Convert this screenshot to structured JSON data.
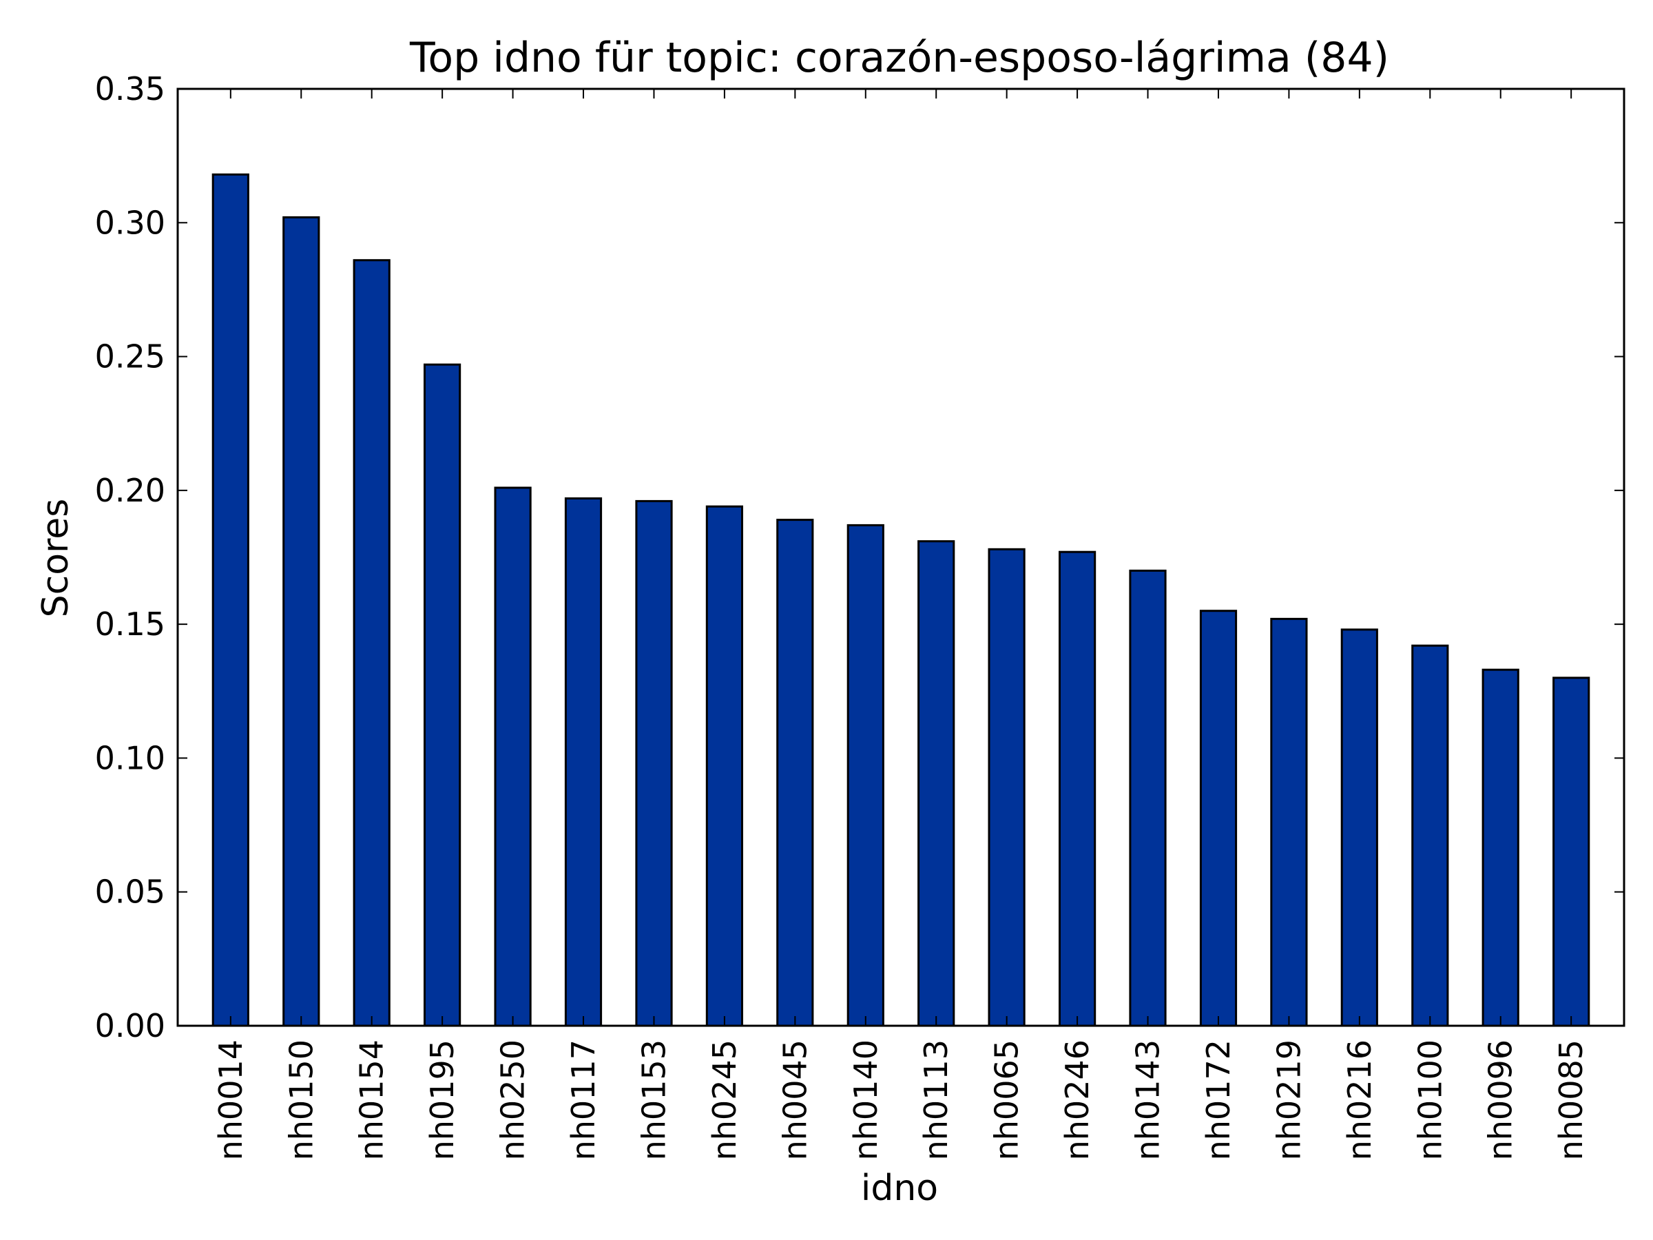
{
  "chart_data": {
    "type": "bar",
    "title": "Top idno für topic: corazón-esposo-lágrima (84)",
    "xlabel": "idno",
    "ylabel": "Scores",
    "ylim": [
      0,
      0.35
    ],
    "yticks": [
      "0.00",
      "0.05",
      "0.10",
      "0.15",
      "0.20",
      "0.25",
      "0.30",
      "0.35"
    ],
    "ytick_values": [
      0,
      0.05,
      0.1,
      0.15,
      0.2,
      0.25,
      0.3,
      0.35
    ],
    "grid": false,
    "bar_color": "#003399",
    "categories": [
      "nh0014",
      "nh0150",
      "nh0154",
      "nh0195",
      "nh0250",
      "nh0117",
      "nh0153",
      "nh0245",
      "nh0045",
      "nh0140",
      "nh0113",
      "nh0065",
      "nh0246",
      "nh0143",
      "nh0172",
      "nh0219",
      "nh0216",
      "nh0100",
      "nh0096",
      "nh0085"
    ],
    "values": [
      0.318,
      0.302,
      0.286,
      0.247,
      0.201,
      0.197,
      0.196,
      0.194,
      0.189,
      0.187,
      0.181,
      0.178,
      0.177,
      0.17,
      0.155,
      0.152,
      0.148,
      0.142,
      0.133,
      0.13
    ]
  }
}
